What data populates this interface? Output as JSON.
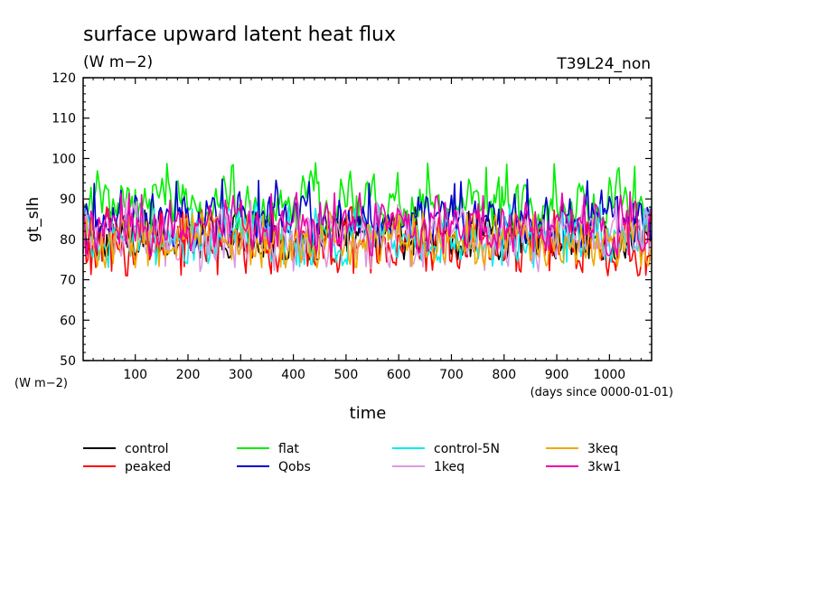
{
  "chart_data": {
    "type": "line",
    "title": "surface upward latent heat flux",
    "units": "(W m−2)",
    "run_label": "T39L24_non",
    "ylabel": "gt_slh",
    "yunits_corner": "(W m−2)",
    "xlabel": "time",
    "xunits": "(days since 0000-01-01)",
    "xlim": [
      1,
      1080
    ],
    "ylim": [
      50,
      120
    ],
    "x_ticks": [
      100,
      200,
      300,
      400,
      500,
      600,
      700,
      800,
      900,
      1000
    ],
    "y_ticks": [
      50,
      60,
      70,
      80,
      90,
      100,
      110,
      120
    ],
    "grid": false,
    "legend_position": "below plot, 4 columns",
    "series": [
      {
        "name": "control",
        "color": "#000000",
        "mean": 80.5,
        "amp": 3.8,
        "min_typ": 75,
        "max_typ": 88
      },
      {
        "name": "peaked",
        "color": "#ff0000",
        "mean": 79.0,
        "amp": 4.2,
        "min_typ": 71,
        "max_typ": 88
      },
      {
        "name": "flat",
        "color": "#00ee00",
        "mean": 89.0,
        "amp": 4.0,
        "min_typ": 82,
        "max_typ": 99
      },
      {
        "name": "Qobs",
        "color": "#0000cc",
        "mean": 85.0,
        "amp": 3.8,
        "min_typ": 78,
        "max_typ": 95
      },
      {
        "name": "control-5N",
        "color": "#00eeee",
        "mean": 80.5,
        "amp": 3.5,
        "min_typ": 73,
        "max_typ": 89
      },
      {
        "name": "1keq",
        "color": "#dd99dd",
        "mean": 80.5,
        "amp": 3.8,
        "min_typ": 72,
        "max_typ": 90
      },
      {
        "name": "3keq",
        "color": "#eeaa00",
        "mean": 79.5,
        "amp": 3.5,
        "min_typ": 73,
        "max_typ": 87
      },
      {
        "name": "3kw1",
        "color": "#ee00aa",
        "mean": 83.0,
        "amp": 3.8,
        "min_typ": 76,
        "max_typ": 92
      }
    ]
  }
}
